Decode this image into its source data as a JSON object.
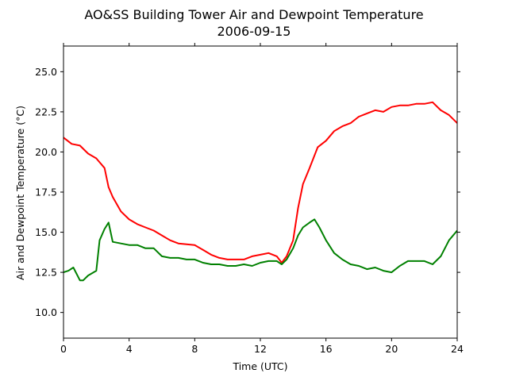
{
  "chart_data": {
    "type": "line",
    "title": "AO&SS Building Tower Air and Dewpoint Temperature",
    "subtitle": "2006-09-15",
    "xlabel": "Time (UTC)",
    "ylabel": "Air and Dewpoint Temperature (°C)",
    "xlim": [
      0,
      24
    ],
    "ylim": [
      8.4,
      26.6
    ],
    "x_ticks": [
      0,
      4,
      8,
      12,
      16,
      20,
      24
    ],
    "y_ticks": [
      10.0,
      12.5,
      15.0,
      17.5,
      20.0,
      22.5,
      25.0
    ],
    "grid": false,
    "legend": "none",
    "series": [
      {
        "color": "#ff0000",
        "x": [
          0,
          0.5,
          1.0,
          1.5,
          2.0,
          2.5,
          2.75,
          3.0,
          3.5,
          4.0,
          4.5,
          5.0,
          5.5,
          6.0,
          6.5,
          7.0,
          7.5,
          8.0,
          8.5,
          9.0,
          9.5,
          10.0,
          10.5,
          11.0,
          11.5,
          12.0,
          12.5,
          13.0,
          13.3,
          13.6,
          14.0,
          14.3,
          14.6,
          15.0,
          15.5,
          16.0,
          16.5,
          17.0,
          17.5,
          18.0,
          18.5,
          19.0,
          19.5,
          20.0,
          20.5,
          21.0,
          21.5,
          22.0,
          22.5,
          23.0,
          23.5,
          24.0
        ],
        "values": [
          20.9,
          20.5,
          20.4,
          19.9,
          19.6,
          19.0,
          17.8,
          17.2,
          16.3,
          15.8,
          15.5,
          15.3,
          15.1,
          14.8,
          14.5,
          14.3,
          14.25,
          14.2,
          13.9,
          13.6,
          13.4,
          13.3,
          13.3,
          13.3,
          13.5,
          13.6,
          13.7,
          13.5,
          13.1,
          13.5,
          14.5,
          16.5,
          18.0,
          19.0,
          20.3,
          20.7,
          21.3,
          21.6,
          21.8,
          22.2,
          22.4,
          22.6,
          22.5,
          22.8,
          22.9,
          22.9,
          23.0,
          23.0,
          23.1,
          22.6,
          22.3,
          21.8
        ]
      },
      {
        "color": "#008000",
        "x": [
          0,
          0.3,
          0.6,
          1.0,
          1.2,
          1.5,
          2.0,
          2.2,
          2.5,
          2.75,
          3.0,
          3.5,
          4.0,
          4.5,
          5.0,
          5.5,
          6.0,
          6.5,
          7.0,
          7.5,
          8.0,
          8.5,
          9.0,
          9.5,
          10.0,
          10.5,
          11.0,
          11.5,
          12.0,
          12.5,
          13.0,
          13.3,
          13.6,
          14.0,
          14.3,
          14.6,
          15.0,
          15.3,
          15.6,
          16.0,
          16.5,
          17.0,
          17.5,
          18.0,
          18.5,
          19.0,
          19.5,
          20.0,
          20.5,
          21.0,
          21.5,
          22.0,
          22.5,
          23.0,
          23.5,
          24.0
        ],
        "values": [
          12.5,
          12.6,
          12.8,
          12.0,
          12.0,
          12.3,
          12.6,
          14.5,
          15.2,
          15.6,
          14.4,
          14.3,
          14.2,
          14.2,
          14.0,
          14.0,
          13.5,
          13.4,
          13.4,
          13.3,
          13.3,
          13.1,
          13.0,
          13.0,
          12.9,
          12.9,
          13.0,
          12.9,
          13.1,
          13.2,
          13.2,
          13.0,
          13.3,
          14.0,
          14.8,
          15.3,
          15.6,
          15.8,
          15.3,
          14.5,
          13.7,
          13.3,
          13.0,
          12.9,
          12.7,
          12.8,
          12.6,
          12.5,
          12.9,
          13.2,
          13.2,
          13.2,
          13.0,
          13.5,
          14.5,
          15.1
        ]
      }
    ]
  }
}
